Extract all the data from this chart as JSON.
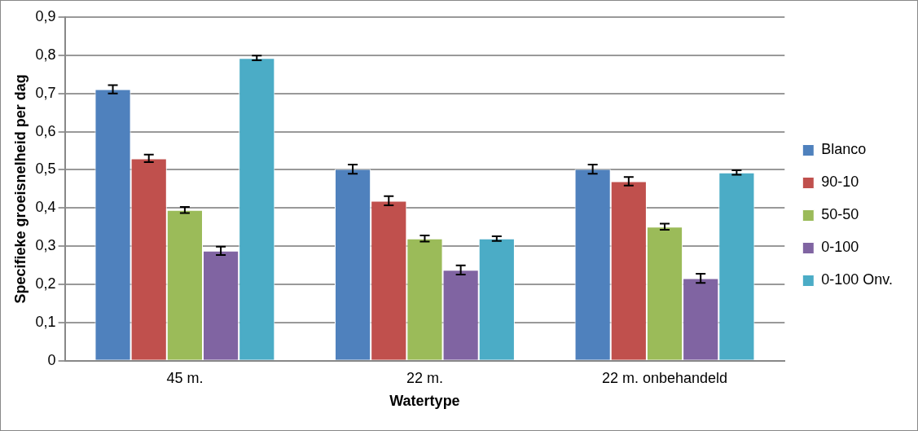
{
  "chart_data": {
    "type": "bar",
    "xlabel": "Watertype",
    "ylabel": "Specifieke groeisnelheid per dag",
    "categories": [
      "45 m.",
      "22 m.",
      "22 m. onbehandeld"
    ],
    "series": [
      {
        "name": "Blanco",
        "color": "#4f81bd",
        "values": [
          0.711,
          0.502,
          0.502
        ],
        "errors": [
          0.011,
          0.012,
          0.012
        ]
      },
      {
        "name": "90-10",
        "color": "#c0504d",
        "values": [
          0.53,
          0.419,
          0.47
        ],
        "errors": [
          0.01,
          0.012,
          0.011
        ]
      },
      {
        "name": "50-50",
        "color": "#9bbb59",
        "values": [
          0.395,
          0.32,
          0.351
        ],
        "errors": [
          0.008,
          0.008,
          0.008
        ]
      },
      {
        "name": "0-100",
        "color": "#8064a2",
        "values": [
          0.288,
          0.238,
          0.216
        ],
        "errors": [
          0.011,
          0.012,
          0.012
        ]
      },
      {
        "name": "0-100 Onv.",
        "color": "#4bacc6",
        "values": [
          0.793,
          0.32,
          0.493
        ],
        "errors": [
          0.006,
          0.006,
          0.006
        ]
      }
    ],
    "ylim": [
      0,
      0.9
    ],
    "yticks": [
      0,
      {
        "value": 0.1,
        "label": "0,1"
      },
      {
        "value": 0.2,
        "label": "0,2"
      },
      {
        "value": 0.3,
        "label": "0,3"
      },
      {
        "value": 0.4,
        "label": "0,4"
      },
      {
        "value": 0.5,
        "label": "0,5"
      },
      {
        "value": 0.6,
        "label": "0,6"
      },
      {
        "value": 0.7,
        "label": "0,7"
      },
      {
        "value": 0.8,
        "label": "0,8"
      },
      {
        "value": 0.9,
        "label": "0,9"
      }
    ],
    "grid": "y",
    "legend": "right"
  }
}
